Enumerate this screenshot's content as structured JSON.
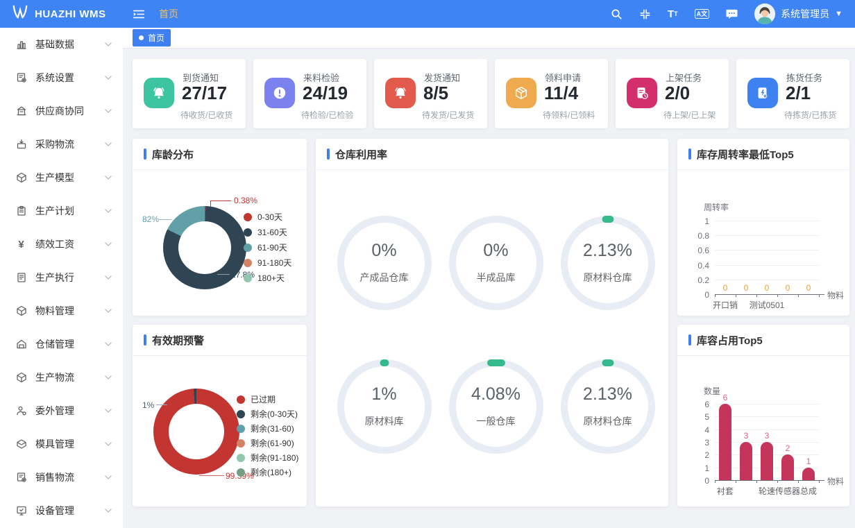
{
  "topbar": {
    "logo": "HUAZHI WMS",
    "breadcrumb": "首页",
    "username": "系统管理员",
    "icons": [
      "search-icon",
      "compress-icon",
      "font-size-icon",
      "translate-icon",
      "message-icon"
    ]
  },
  "tabbar": {
    "active_tab": "首页"
  },
  "sidebar": {
    "items": [
      {
        "label": "基础数据",
        "icon": "chart"
      },
      {
        "label": "系统设置",
        "icon": "docgear"
      },
      {
        "label": "供应商协同",
        "icon": "building"
      },
      {
        "label": "采购物流",
        "icon": "boxarrow"
      },
      {
        "label": "生产模型",
        "icon": "cube"
      },
      {
        "label": "生产计划",
        "icon": "clipboard"
      },
      {
        "label": "绩效工资",
        "icon": "yen"
      },
      {
        "label": "生产执行",
        "icon": "doc"
      },
      {
        "label": "物料管理",
        "icon": "cube"
      },
      {
        "label": "仓储管理",
        "icon": "warehouse"
      },
      {
        "label": "生产物流",
        "icon": "cube"
      },
      {
        "label": "委外管理",
        "icon": "persongear"
      },
      {
        "label": "模具管理",
        "icon": "mold"
      },
      {
        "label": "销售物流",
        "icon": "docgear"
      },
      {
        "label": "设备管理",
        "icon": "monitor"
      }
    ]
  },
  "stats": [
    {
      "title": "到货通知",
      "value": "27/17",
      "caption": "待收货/已收货",
      "color": "#3CC5A0",
      "icon": "bell"
    },
    {
      "title": "来料检验",
      "value": "24/19",
      "caption": "待检验/已检验",
      "color": "#7B82F0",
      "icon": "alert"
    },
    {
      "title": "发货通知",
      "value": "8/5",
      "caption": "待发货/已发货",
      "color": "#E15A4C",
      "icon": "bell"
    },
    {
      "title": "领料申请",
      "value": "11/4",
      "caption": "待领料/已领料",
      "color": "#EFA94F",
      "icon": "boxline"
    },
    {
      "title": "上架任务",
      "value": "2/0",
      "caption": "待上架/已上架",
      "color": "#D42F6D",
      "icon": "docclock"
    },
    {
      "title": "拣货任务",
      "value": "2/1",
      "caption": "待拣货/已拣货",
      "color": "#3D82F0",
      "icon": "docbolt"
    }
  ],
  "chart_data": [
    {
      "id": "stock_age",
      "type": "pie",
      "title": "库龄分布",
      "legend_position": "right",
      "slices": [
        {
          "name": "0-30天",
          "color": "#c23531",
          "value": 0.38,
          "label": "0.38%"
        },
        {
          "name": "31-60天",
          "color": "#2f4554",
          "value": 82,
          "label": "82%"
        },
        {
          "name": "61-90天",
          "color": "#61a0a8",
          "value": 17.8,
          "label": "17.8%"
        },
        {
          "name": "91-180天",
          "color": "#d48265",
          "value": 0
        },
        {
          "name": "180+天",
          "color": "#91c7ae",
          "value": 0
        }
      ]
    },
    {
      "id": "utilization",
      "type": "gauge",
      "title": "仓库利用率",
      "items": [
        {
          "value": "0%",
          "name": "产成品仓库",
          "arc_deg": 0
        },
        {
          "value": "0%",
          "name": "半成品库",
          "arc_deg": 0
        },
        {
          "value": "2.13%",
          "name": "原材料仓库",
          "arc_deg": 14
        },
        {
          "value": "1%",
          "name": "原材料库",
          "arc_deg": 10
        },
        {
          "value": "4.08%",
          "name": "一般仓库",
          "arc_deg": 22
        },
        {
          "value": "2.13%",
          "name": "原材料仓库",
          "arc_deg": 14
        }
      ],
      "arc_color": "#35BA8D"
    },
    {
      "id": "turnover",
      "type": "bar",
      "title": "库存周转率最低Top5",
      "ylabel": "周转率",
      "xlabel": "物料",
      "ylim": [
        0,
        1
      ],
      "yticks": [
        "1",
        "0.8",
        "0.6",
        "0.4",
        "0.2",
        "0"
      ],
      "categories": [
        "开口销",
        "",
        "测试0501",
        "",
        ""
      ],
      "values": [
        0,
        0,
        0,
        0,
        0
      ],
      "bar_color": "#C5355B",
      "value_label_color": "#E6A23C",
      "grid": true
    },
    {
      "id": "expiry",
      "type": "pie",
      "title": "有效期预警",
      "legend_position": "right",
      "slices": [
        {
          "name": "已过期",
          "color": "#c23531",
          "value": 99.39,
          "label": "99.39%"
        },
        {
          "name": "剩余(0-30天)",
          "color": "#2f4554",
          "value": 1,
          "label": "1%"
        },
        {
          "name": "剩余(31-60)",
          "color": "#61a0a8",
          "value": 0
        },
        {
          "name": "剩余(61-90)",
          "color": "#d48265",
          "value": 0
        },
        {
          "name": "剩余(91-180)",
          "color": "#91c7ae",
          "value": 0
        },
        {
          "name": "剩余(180+)",
          "color": "#749f83",
          "value": 0
        }
      ]
    },
    {
      "id": "capacity",
      "type": "bar",
      "title": "库容占用Top5",
      "ylabel": "数量",
      "xlabel": "物料",
      "ylim": [
        0,
        6
      ],
      "yticks": [
        "6",
        "5",
        "4",
        "3",
        "2",
        "1",
        "0"
      ],
      "categories": [
        "衬套",
        "",
        "",
        "轮速传感器总成",
        ""
      ],
      "values": [
        6,
        3,
        3,
        2,
        1
      ],
      "bar_color": "#C5355B",
      "value_label_color": "#E0608C",
      "grid": true
    }
  ]
}
